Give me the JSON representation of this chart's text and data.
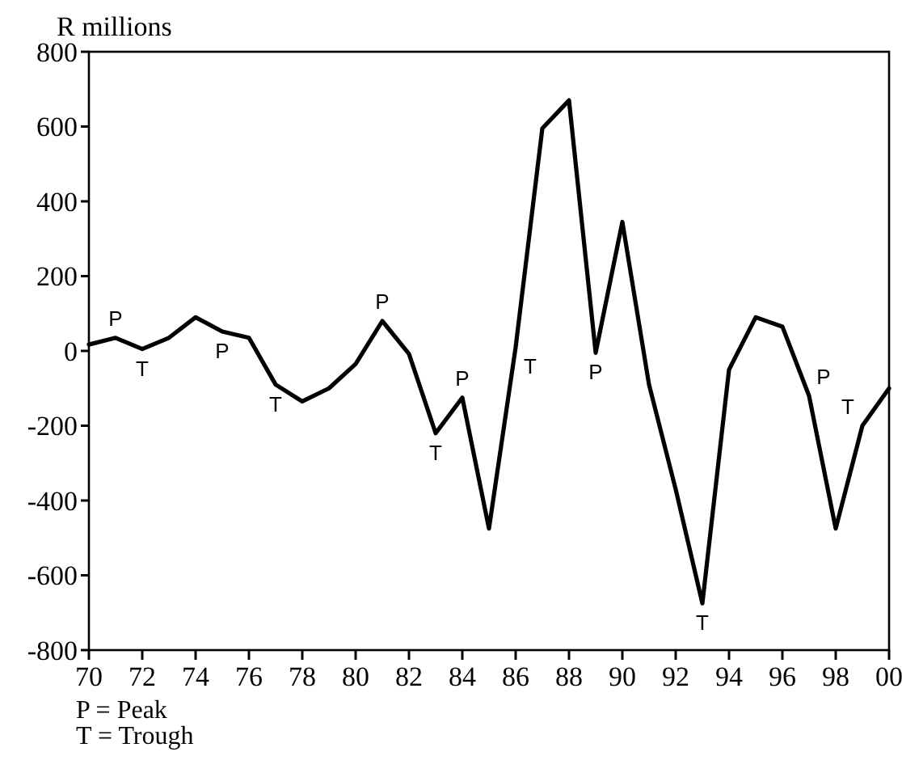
{
  "chart_data": {
    "type": "line",
    "ylabel": "R millions",
    "x": [
      1970,
      1971,
      1972,
      1973,
      1974,
      1975,
      1976,
      1977,
      1978,
      1979,
      1980,
      1981,
      1982,
      1983,
      1984,
      1985,
      1986,
      1987,
      1988,
      1989,
      1990,
      1991,
      1992,
      1993,
      1994,
      1995,
      1996,
      1997,
      1998,
      1999,
      2000
    ],
    "series": [
      {
        "color": "#000000",
        "values": [
          17,
          35,
          5,
          35,
          90,
          52,
          35,
          -90,
          -135,
          -100,
          -35,
          80,
          -8,
          -220,
          -125,
          -475,
          10,
          595,
          670,
          -5,
          345,
          -90,
          -370,
          -675,
          -50,
          90,
          65,
          -120,
          -475,
          -200,
          -100
        ]
      }
    ],
    "xlim": [
      1970,
      2000
    ],
    "xticks": [
      {
        "value": 1970,
        "label": "70"
      },
      {
        "value": 1972,
        "label": "72"
      },
      {
        "value": 1974,
        "label": "74"
      },
      {
        "value": 1976,
        "label": "76"
      },
      {
        "value": 1978,
        "label": "78"
      },
      {
        "value": 1980,
        "label": "80"
      },
      {
        "value": 1982,
        "label": "82"
      },
      {
        "value": 1984,
        "label": "84"
      },
      {
        "value": 1986,
        "label": "86"
      },
      {
        "value": 1988,
        "label": "88"
      },
      {
        "value": 1990,
        "label": "90"
      },
      {
        "value": 1992,
        "label": "92"
      },
      {
        "value": 1994,
        "label": "94"
      },
      {
        "value": 1996,
        "label": "96"
      },
      {
        "value": 1998,
        "label": "98"
      },
      {
        "value": 2000,
        "label": "00"
      }
    ],
    "ylim": [
      -800,
      800
    ],
    "yticks": [
      -800,
      -600,
      -400,
      -200,
      0,
      200,
      400,
      600,
      800
    ],
    "grid": false,
    "marker": "none",
    "line_style": "solid",
    "annotations": [
      {
        "text": "P",
        "x": 1971,
        "y": 35
      },
      {
        "text": "T",
        "x": 1972,
        "y": 5
      },
      {
        "text": "P",
        "x": 1975,
        "y": 52
      },
      {
        "text": "T",
        "x": 1977,
        "y": -90
      },
      {
        "text": "P",
        "x": 1981,
        "y": 80
      },
      {
        "text": "T",
        "x": 1983,
        "y": -220
      },
      {
        "text": "P",
        "x": 1984,
        "y": -125
      },
      {
        "text": "T",
        "x": 1986,
        "y": 10
      },
      {
        "text": "P",
        "x": 1989,
        "y": -5
      },
      {
        "text": "T",
        "x": 1993,
        "y": -675
      },
      {
        "text": "P",
        "x": 1997,
        "y": -120
      },
      {
        "text": "T",
        "x": 1999,
        "y": -200
      },
      "P = Peak",
      "T = Trough"
    ]
  }
}
